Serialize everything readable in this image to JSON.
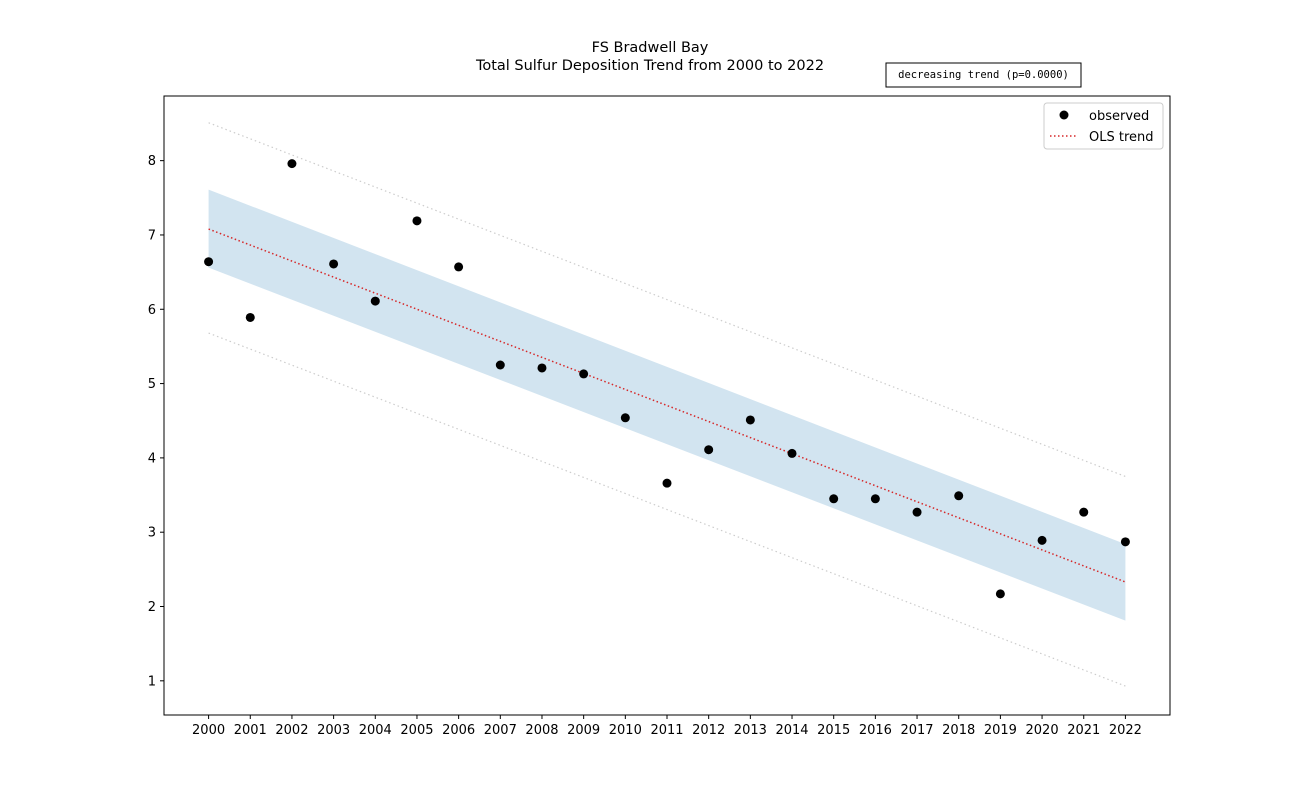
{
  "chart_data": {
    "type": "scatter",
    "title": "FS Bradwell Bay",
    "subtitle": "Total Sulfur Deposition Trend from 2000 to 2022",
    "annotation": "decreasing trend (p=0.0000)",
    "xlabel": "",
    "ylabel": "",
    "x": [
      2000,
      2001,
      2002,
      2003,
      2004,
      2005,
      2006,
      2007,
      2008,
      2009,
      2010,
      2011,
      2012,
      2013,
      2014,
      2015,
      2016,
      2017,
      2018,
      2019,
      2020,
      2021,
      2022
    ],
    "xlim": [
      1998.93,
      2023.07
    ],
    "ylim": [
      0.54,
      8.87
    ],
    "yticks": [
      1,
      2,
      3,
      4,
      5,
      6,
      7,
      8
    ],
    "grid": false,
    "legend": "top-right",
    "series": [
      {
        "name": "observed",
        "kind": "scatter",
        "color": "#000000",
        "values": [
          6.64,
          5.89,
          7.96,
          6.61,
          6.11,
          7.19,
          6.57,
          5.25,
          5.21,
          5.13,
          4.54,
          3.66,
          4.11,
          4.51,
          4.06,
          3.45,
          3.45,
          3.27,
          3.49,
          2.17,
          2.89,
          3.27,
          2.87
        ]
      },
      {
        "name": "OLS trend",
        "kind": "line",
        "style": "dotted",
        "color": "#d62728",
        "start": 7.08,
        "end": 2.33
      }
    ],
    "confidence_band": {
      "color": "#1f77b4",
      "lower_start": 6.56,
      "lower_end": 1.81,
      "upper_start": 7.61,
      "upper_end": 2.84
    },
    "prediction_band": {
      "color": "#cccccc",
      "lower_start": 5.68,
      "lower_end": 0.93,
      "upper_start": 8.51,
      "upper_end": 3.75
    }
  }
}
